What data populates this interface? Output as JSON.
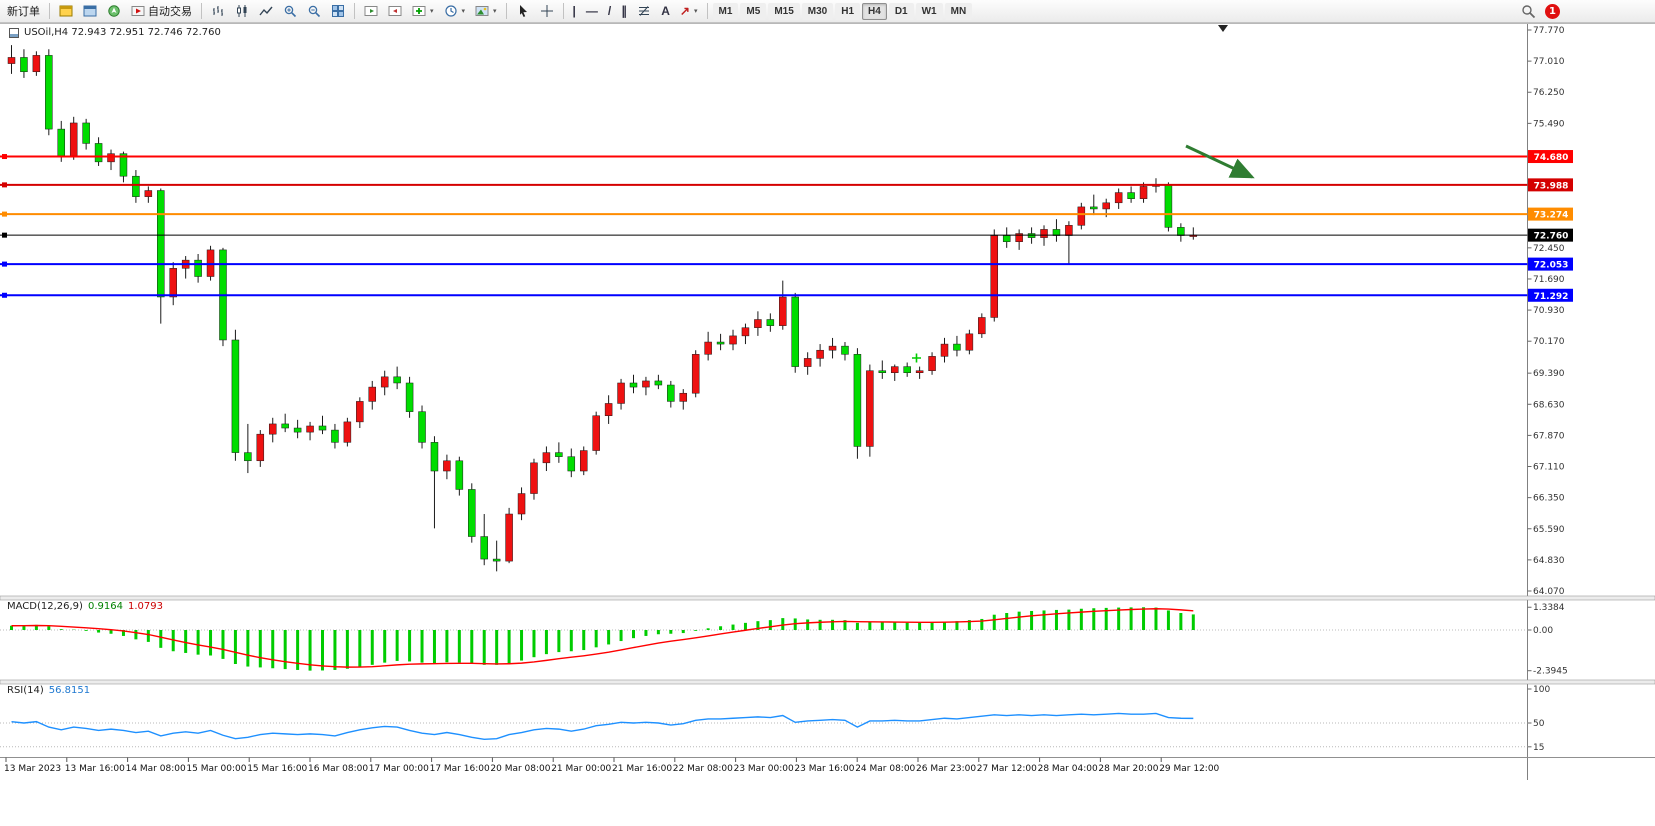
{
  "toolbar": {
    "new_order_label": "新订单",
    "auto_trading_label": "自动交易",
    "timeframes": [
      "M1",
      "M5",
      "M15",
      "M30",
      "H1",
      "H4",
      "D1",
      "W1",
      "MN"
    ],
    "active_timeframe": "H4",
    "badge_count": "1",
    "icon_glyphs": {
      "chevron": "▾",
      "vline": "|",
      "hline": "—",
      "trendline": "/",
      "channel": "∥",
      "text_tool": "A",
      "arrow_tool": "↗"
    },
    "icon_names": [
      "market-watch-icon",
      "data-window-icon",
      "navigator-icon",
      "autotrading-icon",
      "bar-chart-icon",
      "candlestick-chart-icon",
      "line-chart-icon",
      "zoom-in-icon",
      "zoom-out-icon",
      "tile-windows-icon",
      "auto-scroll-icon",
      "chart-shift-icon",
      "indicators-icon",
      "periods-icon",
      "templates-icon",
      "cursor-icon",
      "crosshair-icon",
      "vertical-line-icon",
      "horizontal-line-icon",
      "trendline-icon",
      "channel-icon",
      "fibonacci-icon",
      "text-icon",
      "arrows-icon",
      "search-icon"
    ]
  },
  "chart": {
    "title": "USOil,H4 72.943 72.951 72.746 72.760",
    "symbol": "USOil",
    "timeframe": "H4",
    "quote": {
      "open": "72.943",
      "high": "72.951",
      "low": "72.746",
      "close": "72.760"
    },
    "price_axis": {
      "min": 64.07,
      "max": 77.77,
      "ticks": [
        "77.770",
        "77.010",
        "76.250",
        "75.490",
        "72.450",
        "71.690",
        "70.930",
        "70.170",
        "69.390",
        "68.630",
        "67.870",
        "67.110",
        "66.350",
        "65.590",
        "64.830",
        "64.070"
      ]
    },
    "levels": [
      {
        "price": 74.68,
        "label": "74.680",
        "color": "#ff0000",
        "width": 2
      },
      {
        "price": 73.988,
        "label": "73.988",
        "color": "#d40000",
        "width": 2
      },
      {
        "price": 73.274,
        "label": "73.274",
        "color": "#ff8c00",
        "width": 2
      },
      {
        "price": 72.76,
        "label": "72.760",
        "color": "#000000",
        "width": 1
      },
      {
        "price": 72.053,
        "label": "72.053",
        "color": "#0000ff",
        "width": 2
      },
      {
        "price": 71.292,
        "label": "71.292",
        "color": "#0000ff",
        "width": 2
      }
    ],
    "arrow_annotation": {
      "color": "#2f7d32"
    },
    "time_axis": [
      "13 Mar 2023",
      "13 Mar 16:00",
      "14 Mar 08:00",
      "15 Mar 00:00",
      "15 Mar 16:00",
      "16 Mar 08:00",
      "17 Mar 00:00",
      "17 Mar 16:00",
      "20 Mar 08:00",
      "21 Mar 00:00",
      "21 Mar 16:00",
      "22 Mar 08:00",
      "23 Mar 00:00",
      "23 Mar 16:00",
      "24 Mar 08:00",
      "26 Mar 23:00",
      "27 Mar 12:00",
      "28 Mar 04:00",
      "28 Mar 20:00",
      "29 Mar 12:00"
    ]
  },
  "macd": {
    "label": "MACD(12,26,9)",
    "main_value": "0.9164",
    "signal_value": "1.0793",
    "scale": [
      "1.3384",
      "0.00",
      "-2.3945"
    ]
  },
  "rsi": {
    "label": "RSI(14)",
    "value": "56.8151",
    "scale": [
      "100",
      "50",
      "15"
    ]
  },
  "chart_data": {
    "type": "candlestick",
    "symbol": "USOil",
    "timeframe": "H4",
    "bull_color": "#ee1111",
    "bear_color": "#00dd00",
    "note": "Chinese color convention: red = up candle, green = down candle. OHLC estimated from pixels.",
    "ylim": [
      64.07,
      77.77
    ],
    "candles": [
      [
        76.95,
        77.4,
        76.7,
        77.1
      ],
      [
        77.1,
        77.3,
        76.6,
        76.75
      ],
      [
        76.75,
        77.25,
        76.65,
        77.15
      ],
      [
        77.15,
        77.3,
        75.2,
        75.35
      ],
      [
        75.35,
        75.55,
        74.55,
        74.7
      ],
      [
        74.7,
        75.65,
        74.6,
        75.5
      ],
      [
        75.5,
        75.6,
        74.85,
        75.0
      ],
      [
        75.0,
        75.15,
        74.45,
        74.55
      ],
      [
        74.55,
        74.85,
        74.35,
        74.75
      ],
      [
        74.75,
        74.8,
        74.05,
        74.2
      ],
      [
        74.2,
        74.35,
        73.55,
        73.7
      ],
      [
        73.7,
        73.95,
        73.55,
        73.85
      ],
      [
        73.85,
        73.9,
        70.6,
        71.25
      ],
      [
        71.25,
        72.1,
        71.05,
        71.95
      ],
      [
        71.95,
        72.25,
        71.7,
        72.15
      ],
      [
        72.15,
        72.3,
        71.6,
        71.75
      ],
      [
        71.75,
        72.5,
        71.65,
        72.4
      ],
      [
        72.4,
        72.45,
        70.05,
        70.2
      ],
      [
        70.2,
        70.45,
        67.25,
        67.45
      ],
      [
        67.45,
        68.15,
        66.95,
        67.25
      ],
      [
        67.25,
        68.0,
        67.1,
        67.9
      ],
      [
        67.9,
        68.3,
        67.7,
        68.15
      ],
      [
        68.15,
        68.4,
        67.95,
        68.05
      ],
      [
        68.05,
        68.25,
        67.8,
        67.95
      ],
      [
        67.95,
        68.2,
        67.75,
        68.1
      ],
      [
        68.1,
        68.35,
        67.9,
        68.0
      ],
      [
        68.0,
        68.15,
        67.55,
        67.7
      ],
      [
        67.7,
        68.3,
        67.6,
        68.2
      ],
      [
        68.2,
        68.8,
        68.05,
        68.7
      ],
      [
        68.7,
        69.2,
        68.5,
        69.05
      ],
      [
        69.05,
        69.45,
        68.85,
        69.3
      ],
      [
        69.3,
        69.55,
        69.0,
        69.15
      ],
      [
        69.15,
        69.3,
        68.3,
        68.45
      ],
      [
        68.45,
        68.6,
        67.55,
        67.7
      ],
      [
        67.7,
        67.85,
        65.6,
        67.0
      ],
      [
        67.0,
        67.4,
        66.8,
        67.25
      ],
      [
        67.25,
        67.35,
        66.4,
        66.55
      ],
      [
        66.55,
        66.7,
        65.25,
        65.4
      ],
      [
        65.4,
        65.95,
        64.7,
        64.85
      ],
      [
        64.85,
        65.3,
        64.55,
        64.8
      ],
      [
        64.8,
        66.1,
        64.75,
        65.95
      ],
      [
        65.95,
        66.6,
        65.8,
        66.45
      ],
      [
        66.45,
        67.3,
        66.3,
        67.2
      ],
      [
        67.2,
        67.6,
        67.0,
        67.45
      ],
      [
        67.45,
        67.7,
        67.2,
        67.35
      ],
      [
        67.35,
        67.55,
        66.85,
        67.0
      ],
      [
        67.0,
        67.6,
        66.9,
        67.5
      ],
      [
        67.5,
        68.45,
        67.4,
        68.35
      ],
      [
        68.35,
        68.85,
        68.15,
        68.65
      ],
      [
        68.65,
        69.25,
        68.5,
        69.15
      ],
      [
        69.15,
        69.35,
        68.9,
        69.05
      ],
      [
        69.05,
        69.3,
        68.85,
        69.2
      ],
      [
        69.2,
        69.35,
        69.0,
        69.1
      ],
      [
        69.1,
        69.2,
        68.55,
        68.7
      ],
      [
        68.7,
        69.0,
        68.5,
        68.9
      ],
      [
        68.9,
        69.95,
        68.8,
        69.85
      ],
      [
        69.85,
        70.4,
        69.7,
        70.15
      ],
      [
        70.15,
        70.35,
        69.95,
        70.1
      ],
      [
        70.1,
        70.45,
        69.95,
        70.3
      ],
      [
        70.3,
        70.6,
        70.1,
        70.5
      ],
      [
        70.5,
        70.9,
        70.3,
        70.7
      ],
      [
        70.7,
        70.85,
        70.4,
        70.55
      ],
      [
        70.55,
        71.65,
        70.45,
        71.25
      ],
      [
        71.25,
        71.35,
        69.4,
        69.55
      ],
      [
        69.55,
        69.9,
        69.35,
        69.75
      ],
      [
        69.75,
        70.1,
        69.55,
        69.95
      ],
      [
        69.95,
        70.25,
        69.75,
        70.05
      ],
      [
        70.05,
        70.15,
        69.7,
        69.85
      ],
      [
        69.85,
        70.0,
        67.3,
        67.6
      ],
      [
        67.6,
        69.6,
        67.35,
        69.45
      ],
      [
        69.45,
        69.7,
        69.25,
        69.4
      ],
      [
        69.4,
        69.6,
        69.2,
        69.55
      ],
      [
        69.55,
        69.65,
        69.3,
        69.4
      ],
      [
        69.4,
        69.55,
        69.25,
        69.45
      ],
      [
        69.45,
        69.9,
        69.35,
        69.8
      ],
      [
        69.8,
        70.25,
        69.65,
        70.1
      ],
      [
        70.1,
        70.3,
        69.8,
        69.95
      ],
      [
        69.95,
        70.45,
        69.85,
        70.35
      ],
      [
        70.35,
        70.85,
        70.25,
        70.75
      ],
      [
        70.75,
        72.9,
        70.65,
        72.75
      ],
      [
        72.75,
        72.95,
        72.45,
        72.6
      ],
      [
        72.6,
        72.9,
        72.4,
        72.8
      ],
      [
        72.8,
        72.95,
        72.55,
        72.7
      ],
      [
        72.7,
        73.0,
        72.5,
        72.9
      ],
      [
        72.9,
        73.15,
        72.6,
        72.75
      ],
      [
        72.75,
        73.1,
        72.05,
        73.0
      ],
      [
        73.0,
        73.55,
        72.9,
        73.45
      ],
      [
        73.45,
        73.75,
        73.25,
        73.4
      ],
      [
        73.4,
        73.65,
        73.2,
        73.55
      ],
      [
        73.55,
        73.9,
        73.4,
        73.8
      ],
      [
        73.8,
        73.95,
        73.55,
        73.65
      ],
      [
        73.65,
        74.05,
        73.55,
        73.95
      ],
      [
        73.95,
        74.15,
        73.8,
        74.0
      ],
      [
        74.0,
        74.05,
        72.85,
        72.95
      ],
      [
        72.95,
        73.05,
        72.6,
        72.75
      ],
      [
        72.75,
        72.95,
        72.65,
        72.76
      ]
    ],
    "macd_main": [
      0.25,
      0.28,
      0.3,
      0.22,
      0.05,
      0.02,
      -0.05,
      -0.15,
      -0.22,
      -0.35,
      -0.55,
      -0.7,
      -1.05,
      -1.25,
      -1.35,
      -1.45,
      -1.5,
      -1.7,
      -2.0,
      -2.15,
      -2.2,
      -2.25,
      -2.3,
      -2.35,
      -2.39,
      -2.38,
      -2.35,
      -2.28,
      -2.18,
      -2.05,
      -1.92,
      -1.82,
      -1.85,
      -1.92,
      -1.95,
      -1.9,
      -1.92,
      -1.98,
      -2.05,
      -2.05,
      -1.95,
      -1.8,
      -1.6,
      -1.42,
      -1.3,
      -1.25,
      -1.18,
      -1.02,
      -0.85,
      -0.65,
      -0.48,
      -0.35,
      -0.25,
      -0.22,
      -0.18,
      -0.05,
      0.1,
      0.22,
      0.32,
      0.42,
      0.52,
      0.58,
      0.7,
      0.68,
      0.62,
      0.6,
      0.6,
      0.58,
      0.42,
      0.45,
      0.45,
      0.45,
      0.43,
      0.42,
      0.45,
      0.5,
      0.52,
      0.58,
      0.65,
      0.9,
      1.0,
      1.08,
      1.12,
      1.15,
      1.18,
      1.2,
      1.25,
      1.28,
      1.3,
      1.32,
      1.33,
      1.3384,
      1.32,
      1.15,
      1.0,
      0.9164
    ],
    "macd_range": [
      -2.3945,
      1.3384
    ],
    "rsi": [
      52,
      50,
      52,
      44,
      40,
      44,
      42,
      39,
      41,
      39,
      36,
      38,
      31,
      35,
      37,
      35,
      39,
      32,
      27,
      29,
      33,
      35,
      34,
      33,
      34,
      33,
      31,
      36,
      40,
      43,
      45,
      44,
      39,
      35,
      33,
      36,
      33,
      29,
      26,
      27,
      33,
      36,
      40,
      42,
      41,
      38,
      41,
      46,
      48,
      51,
      50,
      51,
      50,
      47,
      49,
      54,
      56,
      56,
      57,
      58,
      59,
      58,
      61,
      51,
      53,
      54,
      55,
      54,
      44,
      53,
      53,
      54,
      53,
      53,
      55,
      57,
      56,
      58,
      60,
      62,
      61,
      62,
      61,
      62,
      61,
      62,
      63,
      62,
      63,
      64,
      63,
      63,
      64,
      58,
      57,
      56.8
    ],
    "rsi_range": [
      0,
      100
    ]
  }
}
